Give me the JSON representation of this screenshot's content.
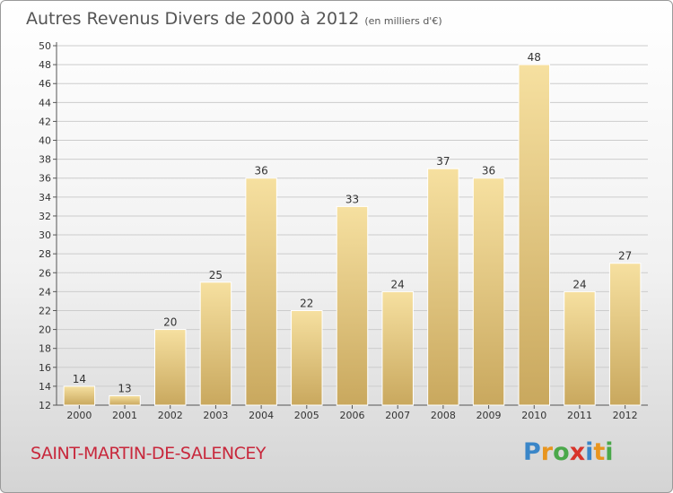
{
  "title": "Autres Revenus Divers de 2000 à 2012",
  "title_unit": "(en milliers d'€)",
  "city": "SAINT-MARTIN-DE-SALENCEY",
  "logo": {
    "letters": [
      "P",
      "r",
      "o",
      "x",
      "i",
      "t",
      "i"
    ],
    "colors": [
      "#3a86c8",
      "#e8951f",
      "#4aa84a",
      "#d8342a",
      "#3a86c8",
      "#e8951f",
      "#4aa84a"
    ]
  },
  "colors": {
    "bar_light": "#f6e0a0",
    "bar_dark": "#c9a85e",
    "axis": "#555555",
    "grid": "#cccccc",
    "city": "#c8283c"
  },
  "chart_data": {
    "type": "bar",
    "categories": [
      "2000",
      "2001",
      "2002",
      "2003",
      "2004",
      "2005",
      "2006",
      "2007",
      "2008",
      "2009",
      "2010",
      "2011",
      "2012"
    ],
    "values": [
      14,
      13,
      20,
      25,
      36,
      22,
      33,
      24,
      37,
      36,
      48,
      24,
      27
    ],
    "data_labels": [
      "14",
      "13",
      "20",
      "25",
      "36",
      "22",
      "33",
      "24",
      "37",
      "36",
      "48",
      "24",
      "27"
    ],
    "yticks": [
      "12",
      "14",
      "16",
      "18",
      "20",
      "22",
      "24",
      "26",
      "28",
      "30",
      "32",
      "34",
      "36",
      "38",
      "40",
      "42",
      "44",
      "46",
      "48",
      "50"
    ],
    "ylim": [
      12,
      50
    ],
    "grid": true,
    "xlabel": "",
    "ylabel": ""
  }
}
